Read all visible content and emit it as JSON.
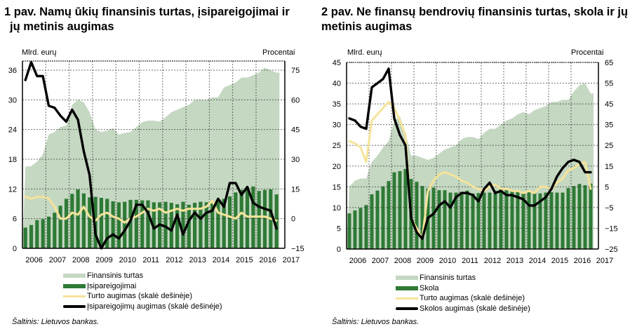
{
  "chart_data": [
    {
      "type": "bar",
      "title": "1 pav. Namų ūkių finansinis turtas, įsipareigojimai ir jų metinis augimas",
      "ylabel": "Mlrd. eurų",
      "y2label": "Procentai",
      "ylim": [
        0,
        36
      ],
      "yticks": [
        0,
        6,
        12,
        18,
        24,
        30,
        36
      ],
      "y2lim": [
        -15,
        75
      ],
      "y2ticks": [
        -15,
        0,
        15,
        30,
        45,
        60,
        75
      ],
      "xticks": [
        "2006",
        "2007",
        "2008",
        "2009",
        "2010",
        "2011",
        "2012",
        "2013",
        "2014",
        "2015",
        "2016",
        "2017"
      ],
      "x_frequency": "quarterly",
      "x_start": "2006Q1",
      "grid": true,
      "series": [
        {
          "name": "Finansinis turtas",
          "kind": "area",
          "axis": "left",
          "color": "#c5d8c2",
          "values": [
            16.5,
            16.6,
            17.5,
            19,
            23,
            23.5,
            24.5,
            24.8,
            29,
            30,
            29.5,
            27.5,
            24,
            23.5,
            23.8,
            24.3,
            23,
            23.3,
            23.5,
            24.5,
            25.5,
            25.8,
            25.8,
            25.6,
            26.5,
            27.5,
            28,
            28.5,
            29,
            30,
            30,
            30,
            30.5,
            30.5,
            32.5,
            33,
            33.5,
            34.5,
            34.5,
            35,
            35.5,
            36.5,
            36,
            35.5
          ]
        },
        {
          "name": "Įsipareigojimai",
          "kind": "bar",
          "axis": "left",
          "color": "#2e7a36",
          "values": [
            4.2,
            4.7,
            5.7,
            5.9,
            6.4,
            7.2,
            8.6,
            10,
            11,
            11.9,
            11.1,
            10.3,
            10.4,
            10.2,
            10,
            9.5,
            9.3,
            9.4,
            9.8,
            9.8,
            9.7,
            9.7,
            9.3,
            9.3,
            9.4,
            9.2,
            8.9,
            9.4,
            8.8,
            9.2,
            9.4,
            9.3,
            9.1,
            9.4,
            10,
            10.5,
            11.3,
            11.8,
            12.3,
            12.5,
            11.6,
            11.8,
            11.9,
            10.9
          ]
        },
        {
          "name": "Turto augimas (skalė dešinėje)",
          "kind": "line",
          "axis": "right",
          "color": "#f5e39a",
          "values": [
            11,
            10,
            11,
            11,
            10,
            6,
            0,
            0,
            3,
            2,
            6,
            1,
            -1,
            2,
            3,
            1,
            0,
            -2,
            0,
            1,
            3,
            5,
            4,
            5,
            3,
            4,
            5,
            4,
            5,
            5,
            5,
            6,
            9,
            3,
            2,
            1,
            0,
            3,
            1,
            1,
            1,
            1,
            0,
            -1
          ]
        },
        {
          "name": "Įsipareigojimų augimas (skalė dešinėje)",
          "kind": "line",
          "axis": "right",
          "color": "#000000",
          "values": [
            70,
            79,
            72,
            72,
            57,
            56,
            52,
            49,
            55,
            50,
            34,
            22,
            -8,
            -15,
            -10,
            -8,
            -10,
            -6,
            -1,
            7,
            7,
            3,
            -5,
            -3,
            -4,
            -6,
            2,
            -8,
            -1,
            3,
            0,
            3,
            4,
            10,
            6,
            18,
            18,
            12,
            16,
            8,
            6,
            5,
            4,
            -5
          ]
        }
      ],
      "legend": [
        "Finansinis turtas",
        "Įsipareigojimai",
        "Turto augimas (skalė dešinėje)",
        "Įsipareigojimų augimas (skalė dešinėje)"
      ],
      "legend_position": "bottom",
      "source": "Šaltinis: Lietuvos bankas."
    },
    {
      "type": "bar",
      "title": "2 pav. Ne finansų bendrovių finansinis turtas, skola ir jų metinis augimas",
      "ylabel": "Mlrd. eurų",
      "y2label": "Procentai",
      "ylim": [
        0,
        45
      ],
      "yticks": [
        0,
        5,
        10,
        15,
        20,
        25,
        30,
        35,
        40,
        45
      ],
      "y2lim": [
        -25,
        65
      ],
      "y2ticks": [
        -25,
        -15,
        -5,
        5,
        15,
        25,
        35,
        45,
        55,
        65
      ],
      "xticks": [
        "2006",
        "2007",
        "2008",
        "2009",
        "2010",
        "2011",
        "2012",
        "2013",
        "2014",
        "2015",
        "2016",
        "2017"
      ],
      "x_frequency": "quarterly",
      "x_start": "2006Q1",
      "grid": true,
      "series": [
        {
          "name": "Finansinis turtas",
          "kind": "area",
          "axis": "left",
          "color": "#c5d8c2",
          "values": [
            15,
            16.5,
            17,
            17,
            21,
            22.5,
            24.5,
            26,
            31,
            32,
            28,
            22.5,
            22.5,
            22,
            21.5,
            22,
            23,
            24,
            24.5,
            25,
            26.5,
            27,
            27,
            26.5,
            28,
            29,
            29,
            30,
            31,
            31.5,
            32.5,
            33,
            32.5,
            33.5,
            34,
            34.5,
            35.5,
            35.5,
            36,
            36,
            38,
            39.5,
            40,
            37.5
          ]
        },
        {
          "name": "Skola",
          "kind": "bar",
          "axis": "left",
          "color": "#2e7a36",
          "values": [
            8.6,
            9.3,
            9.9,
            10.6,
            13.2,
            14.1,
            15.1,
            16.4,
            18.5,
            18.8,
            19.3,
            16.9,
            16.2,
            15.2,
            14.6,
            14.8,
            14.2,
            14.2,
            13.6,
            13.6,
            13.8,
            14.1,
            13.4,
            13.5,
            13.6,
            13.6,
            14,
            14.5,
            14.2,
            14.1,
            14,
            13.6,
            13.8,
            13.6,
            13.4,
            13.6,
            13.7,
            13.6,
            13.6,
            14.7,
            15.2,
            15.7,
            15.4,
            15.8
          ]
        },
        {
          "name": "Turto augimas (skalė dešinėje)",
          "kind": "line",
          "axis": "right",
          "color": "#f5e39a",
          "values": [
            27,
            26,
            24,
            17,
            37,
            40,
            43,
            46,
            43,
            37,
            30,
            -10,
            -15,
            -20,
            3,
            8,
            11,
            12,
            11,
            10,
            8,
            7,
            5,
            4,
            3,
            5,
            6,
            4,
            4,
            3,
            3,
            2,
            3,
            2,
            5,
            5,
            4,
            7,
            9,
            13,
            14,
            16,
            17,
            4
          ]
        },
        {
          "name": "Skolos augimas (skalė dešinėje)",
          "kind": "line",
          "axis": "right",
          "color": "#000000",
          "values": [
            38,
            37,
            34,
            33,
            53,
            55,
            57,
            62,
            38,
            30,
            25,
            -10,
            -17,
            -20,
            -10,
            -8,
            -4,
            -2,
            -5,
            0,
            2,
            2,
            1,
            -2,
            4,
            7,
            2,
            3,
            1,
            1,
            0,
            -1,
            -4,
            -4,
            -2,
            0,
            4,
            10,
            14,
            17,
            18,
            17,
            12,
            12
          ]
        }
      ],
      "legend": [
        "Finansinis turtas",
        "Skola",
        "Turto augimas (skalė dešinėje)",
        "Skolos augimas (skalė dešinėje)"
      ],
      "legend_position": "bottom",
      "source": "Šaltinis: Lietuvos bankas."
    }
  ],
  "panels": [
    {
      "title_line1": "1 pav. Namų ūkių finansinis turtas, įsipareigojimai ir",
      "title_line2": "jų metinis augimas",
      "left_unit": "Mlrd. eurų",
      "right_unit": "Procentai",
      "legend": [
        "Finansinis turtas",
        "Įsipareigojimai",
        "Turto augimas (skalė dešinėje)",
        "Įsipareigojimų augimas (skalė dešinėje)"
      ],
      "source": "Šaltinis: Lietuvos bankas."
    },
    {
      "title_line1": "2 pav. Ne finansų bendrovių finansinis turtas, skola ir jų",
      "title_line2": "metinis augimas",
      "left_unit": "Mlrd. eurų",
      "right_unit": "Procentai",
      "legend": [
        "Finansinis turtas",
        "Skola",
        "Turto augimas (skalė dešinėje)",
        "Skolos augimas (skalė dešinėje)"
      ],
      "source": "Šaltinis: Lietuvos bankas."
    }
  ],
  "colors": {
    "asset_area": "#c5d8c2",
    "liability_bar": "#2e7a36",
    "asset_growth": "#f5e39a",
    "liability_growth": "#000000"
  }
}
